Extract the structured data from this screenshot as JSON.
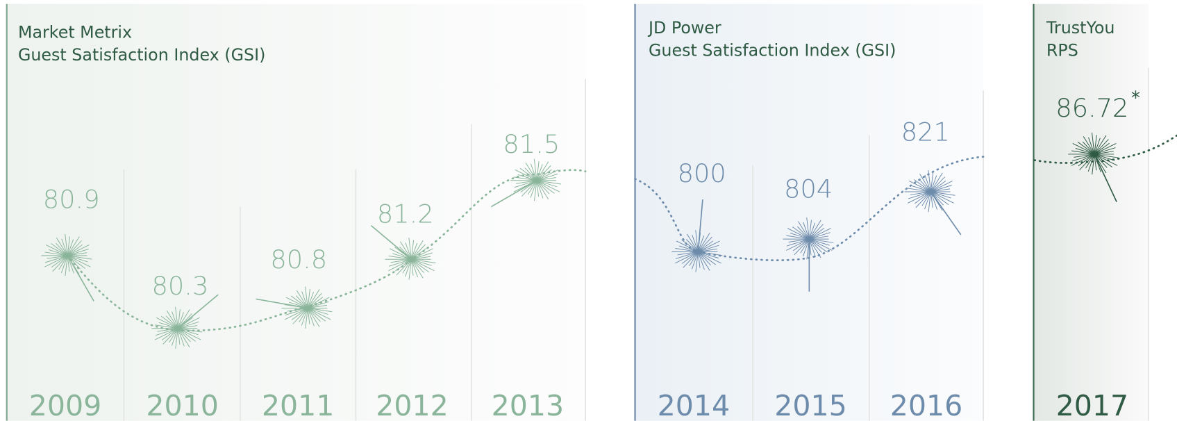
{
  "panels": [
    {
      "title": [
        "Market Metrix",
        "Guest Satisfaction Index (GSI)"
      ],
      "years": [
        "2009",
        "2010",
        "2011",
        "2012",
        "2013"
      ],
      "values": [
        80.9,
        80.3,
        80.8,
        81.2,
        81.5
      ]
    },
    {
      "title": [
        "JD Power",
        "Guest Satisfaction Index (GSI)"
      ],
      "years": [
        "2014",
        "2015",
        "2016"
      ],
      "values": [
        800,
        804,
        821
      ]
    },
    {
      "title": [
        "TrustYou",
        "RPS"
      ],
      "years": [
        "2017"
      ],
      "values": [
        86.72
      ],
      "note": "*"
    }
  ]
}
